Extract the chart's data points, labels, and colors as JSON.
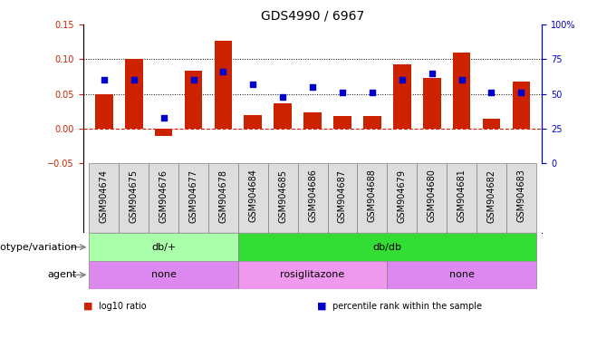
{
  "title": "GDS4990 / 6967",
  "samples": [
    "GSM904674",
    "GSM904675",
    "GSM904676",
    "GSM904677",
    "GSM904678",
    "GSM904684",
    "GSM904685",
    "GSM904686",
    "GSM904687",
    "GSM904688",
    "GSM904679",
    "GSM904680",
    "GSM904681",
    "GSM904682",
    "GSM904683"
  ],
  "log10_ratio": [
    0.05,
    0.1,
    -0.01,
    0.083,
    0.127,
    0.02,
    0.037,
    0.024,
    0.018,
    0.018,
    0.093,
    0.073,
    0.11,
    0.014,
    0.068
  ],
  "percentile_rank": [
    60.0,
    60.0,
    33.0,
    60.0,
    66.0,
    57.0,
    48.0,
    55.0,
    51.0,
    51.0,
    60.0,
    65.0,
    60.0,
    51.0,
    51.0
  ],
  "bar_color": "#cc2200",
  "dot_color": "#0000cc",
  "ylim_left": [
    -0.05,
    0.15
  ],
  "ylim_right": [
    0,
    100
  ],
  "genotype_groups": [
    {
      "label": "db/+",
      "start": 0,
      "end": 5,
      "color": "#aaffaa"
    },
    {
      "label": "db/db",
      "start": 5,
      "end": 15,
      "color": "#33dd33"
    }
  ],
  "agent_groups": [
    {
      "label": "none",
      "start": 0,
      "end": 5,
      "color": "#dd88ee"
    },
    {
      "label": "rosiglitazone",
      "start": 5,
      "end": 10,
      "color": "#ee99ee"
    },
    {
      "label": "none",
      "start": 10,
      "end": 15,
      "color": "#dd88ee"
    }
  ],
  "legend_items": [
    {
      "label": "log10 ratio",
      "color": "#cc2200"
    },
    {
      "label": "percentile rank within the sample",
      "color": "#0000cc"
    }
  ],
  "tick_fontsize": 7,
  "label_fontsize": 8,
  "title_fontsize": 10,
  "bar_width": 0.6
}
